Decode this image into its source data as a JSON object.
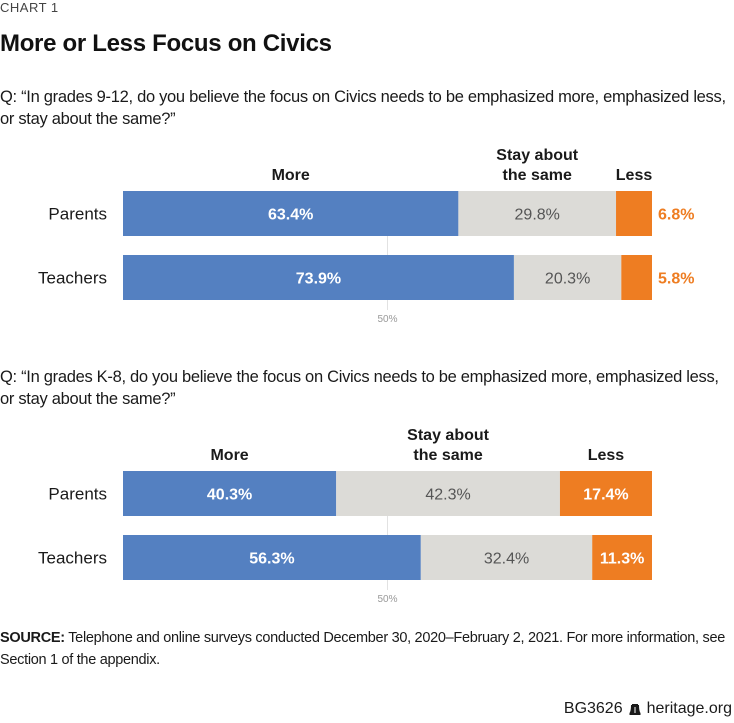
{
  "header": {
    "kicker": "CHART 1",
    "title": "More or Less Focus on Civics"
  },
  "colors": {
    "more": "#5480c1",
    "same": "#dcdbd7",
    "less": "#ee7d22",
    "gridline": "#e2e2e2"
  },
  "chart_data": [
    {
      "type": "bar",
      "orientation": "horizontal",
      "stacked": true,
      "title": "Q: “In grades 9-12, do you believe the focus on Civics needs to be emphasized more, emphasized less, or stay about the same?”",
      "categories": [
        "Parents",
        "Teachers"
      ],
      "series": [
        {
          "name": "More",
          "values": [
            63.4,
            73.9
          ],
          "labels": [
            "63.4%",
            "73.9%"
          ]
        },
        {
          "name": "Stay about the same",
          "values": [
            29.8,
            20.3
          ],
          "labels": [
            "29.8%",
            "20.3%"
          ]
        },
        {
          "name": "Less",
          "values": [
            6.8,
            5.8
          ],
          "labels": [
            "6.8%",
            "5.8%"
          ]
        }
      ],
      "series_header_lines": [
        [
          "More"
        ],
        [
          "Stay about",
          "the same"
        ],
        [
          "Less"
        ]
      ],
      "xlim": [
        0,
        100
      ],
      "reference_line": {
        "value": 50,
        "label": "50%"
      },
      "less_label_outside": true
    },
    {
      "type": "bar",
      "orientation": "horizontal",
      "stacked": true,
      "title": "Q: “In grades K-8, do you believe the focus on Civics needs to be emphasized more, emphasized less, or stay about the same?”",
      "categories": [
        "Parents",
        "Teachers"
      ],
      "series": [
        {
          "name": "More",
          "values": [
            40.3,
            56.3
          ],
          "labels": [
            "40.3%",
            "56.3%"
          ]
        },
        {
          "name": "Stay about the same",
          "values": [
            42.3,
            32.4
          ],
          "labels": [
            "42.3%",
            "32.4%"
          ]
        },
        {
          "name": "Less",
          "values": [
            17.4,
            11.3
          ],
          "labels": [
            "17.4%",
            "11.3%"
          ]
        }
      ],
      "series_header_lines": [
        [
          "More"
        ],
        [
          "Stay about",
          "the same"
        ],
        [
          "Less"
        ]
      ],
      "xlim": [
        0,
        100
      ],
      "reference_line": {
        "value": 50,
        "label": "50%"
      },
      "less_label_outside": false
    }
  ],
  "source": {
    "label": "SOURCE:",
    "text": " Telephone and online surveys conducted December 30, 2020–February 2, 2021. For more information, see Section 1 of the appendix."
  },
  "footer": {
    "code": "BG3626",
    "site": "heritage.org"
  }
}
